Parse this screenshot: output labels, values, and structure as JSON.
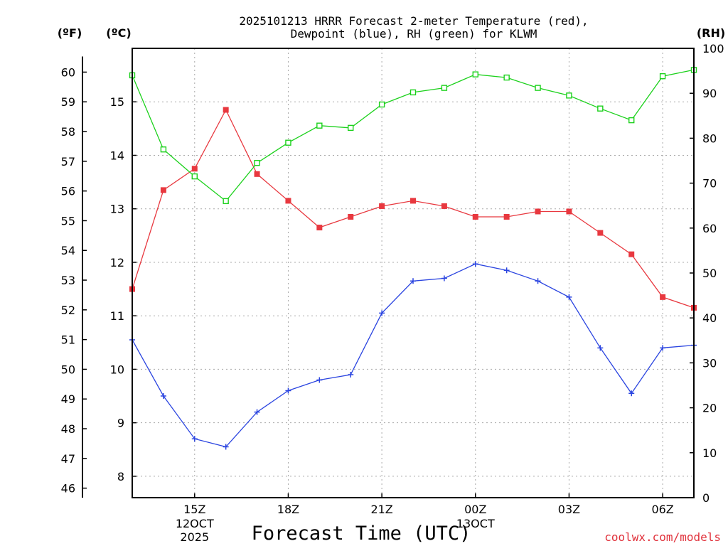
{
  "chart_data": {
    "type": "line",
    "title_lines": [
      "2025101213 HRRR Forecast 2-meter Temperature (red),",
      "Dewpoint (blue), RH (green) for KLWM"
    ],
    "xlabel": "Forecast Time (UTC)",
    "credit": "coolwx.com/models",
    "x_hours": [
      13,
      14,
      15,
      16,
      17,
      18,
      19,
      20,
      21,
      22,
      23,
      0,
      1,
      2,
      3,
      4,
      5,
      6,
      7
    ],
    "x_ticks": [
      {
        "label": "15Z",
        "sub": [
          "12OCT",
          "2025"
        ],
        "index": 2
      },
      {
        "label": "18Z",
        "sub": [],
        "index": 5
      },
      {
        "label": "21Z",
        "sub": [],
        "index": 8
      },
      {
        "label": "00Z",
        "sub": [
          "13OCT"
        ],
        "index": 11
      },
      {
        "label": "03Z",
        "sub": [],
        "index": 14
      },
      {
        "label": "06Z",
        "sub": [],
        "index": 17
      }
    ],
    "axes": {
      "fahrenheit": {
        "unit": "(ºF)",
        "ticks": [
          46,
          47,
          48,
          49,
          50,
          51,
          52,
          53,
          54,
          55,
          56,
          57,
          58,
          59,
          60
        ]
      },
      "celsius": {
        "unit": "(ºC)",
        "ylim": [
          7.6,
          16.0
        ],
        "ticks": [
          8,
          9,
          10,
          11,
          12,
          13,
          14,
          15
        ]
      },
      "rh": {
        "unit": "(RH)",
        "ylim": [
          0,
          100
        ],
        "ticks": [
          0,
          10,
          20,
          30,
          40,
          50,
          60,
          70,
          80,
          90,
          100
        ]
      }
    },
    "series": [
      {
        "name": "Temperature",
        "color": "#e8383f",
        "marker": "filled-square",
        "axis": "celsius",
        "values": [
          11.5,
          13.35,
          13.75,
          14.85,
          13.65,
          13.15,
          12.65,
          12.85,
          13.05,
          13.15,
          13.05,
          12.85,
          12.85,
          12.95,
          12.95,
          12.55,
          12.15,
          11.35,
          11.15
        ]
      },
      {
        "name": "Dewpoint",
        "color": "#2a44e0",
        "marker": "plus",
        "axis": "celsius",
        "values": [
          10.55,
          9.5,
          8.7,
          8.55,
          9.2,
          9.6,
          9.8,
          9.9,
          11.05,
          11.65,
          11.7,
          11.97,
          11.85,
          11.65,
          11.35,
          10.4,
          9.55,
          10.4,
          10.45
        ]
      },
      {
        "name": "RH",
        "color": "#1cd11c",
        "marker": "open-square",
        "axis": "rh",
        "values": [
          94,
          77.5,
          71.5,
          66,
          74.5,
          79,
          82.8,
          82.3,
          87.5,
          90.2,
          91.2,
          94.2,
          93.5,
          91.2,
          89.5,
          86.6,
          84,
          93.8,
          95.2
        ]
      }
    ]
  }
}
